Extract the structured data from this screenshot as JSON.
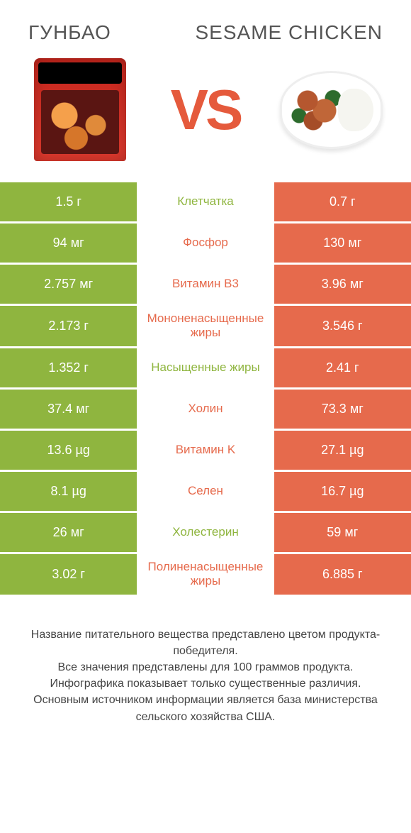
{
  "colors": {
    "left_bg": "#8fb53f",
    "right_bg": "#e66a4c",
    "left_text": "#8fb53f",
    "right_text": "#e66a4c",
    "vs": "#e55a3c"
  },
  "header": {
    "left_title": "ГУНБАО",
    "right_title": "SESAME CHICKEN",
    "vs_label": "VS"
  },
  "rows": [
    {
      "left": "1.5 г",
      "label": "Клетчатка",
      "right": "0.7 г",
      "winner": "left"
    },
    {
      "left": "94 мг",
      "label": "Фосфор",
      "right": "130 мг",
      "winner": "right"
    },
    {
      "left": "2.757 мг",
      "label": "Витамин B3",
      "right": "3.96 мг",
      "winner": "right"
    },
    {
      "left": "2.173 г",
      "label": "Мононенасыщенные жиры",
      "right": "3.546 г",
      "winner": "right"
    },
    {
      "left": "1.352 г",
      "label": "Насыщенные жиры",
      "right": "2.41 г",
      "winner": "left"
    },
    {
      "left": "37.4 мг",
      "label": "Холин",
      "right": "73.3 мг",
      "winner": "right"
    },
    {
      "left": "13.6 µg",
      "label": "Витамин K",
      "right": "27.1 µg",
      "winner": "right"
    },
    {
      "left": "8.1 µg",
      "label": "Селен",
      "right": "16.7 µg",
      "winner": "right"
    },
    {
      "left": "26 мг",
      "label": "Холестерин",
      "right": "59 мг",
      "winner": "left"
    },
    {
      "left": "3.02 г",
      "label": "Полиненасыщенные жиры",
      "right": "6.885 г",
      "winner": "right"
    }
  ],
  "footer": {
    "line1": "Название питательного вещества представлено цветом продукта-победителя.",
    "line2": "Все значения представлены для 100 граммов продукта.",
    "line3": "Инфографика показывает только существенные различия.",
    "line4": "Основным источником информации является база министерства сельского хозяйства США."
  }
}
